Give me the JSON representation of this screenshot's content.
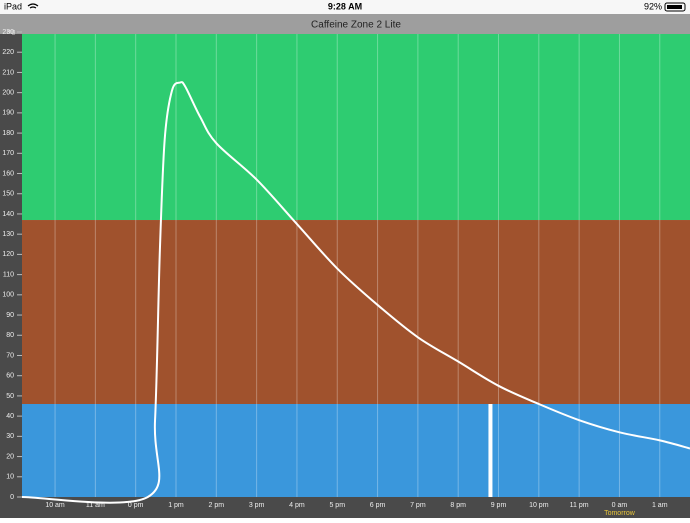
{
  "status_bar": {
    "device": "iPad",
    "time": "9:28 AM",
    "battery": "92%"
  },
  "chart_data": {
    "type": "line",
    "title": "Caffeine Zone 2 Lite",
    "y_label": "mg",
    "xlim": [
      9.18,
      25.75
    ],
    "ylim": [
      0,
      230
    ],
    "yticks": [
      0,
      10,
      20,
      30,
      40,
      50,
      60,
      70,
      80,
      90,
      100,
      110,
      120,
      130,
      140,
      150,
      160,
      170,
      180,
      190,
      200,
      210,
      220,
      230
    ],
    "xticks": [
      {
        "value": 10,
        "label": "10 am"
      },
      {
        "value": 11,
        "label": "11 am"
      },
      {
        "value": 12,
        "label": "0 pm"
      },
      {
        "value": 13,
        "label": "1 pm"
      },
      {
        "value": 14,
        "label": "2 pm"
      },
      {
        "value": 15,
        "label": "3 pm"
      },
      {
        "value": 16,
        "label": "4 pm"
      },
      {
        "value": 17,
        "label": "5 pm"
      },
      {
        "value": 18,
        "label": "6 pm"
      },
      {
        "value": 19,
        "label": "7 pm"
      },
      {
        "value": 20,
        "label": "8 pm"
      },
      {
        "value": 21,
        "label": "9 pm"
      },
      {
        "value": 22,
        "label": "10 pm"
      },
      {
        "value": 23,
        "label": "11 pm"
      },
      {
        "value": 24,
        "label": "0 am"
      },
      {
        "value": 25,
        "label": "1 am"
      }
    ],
    "annotations": [
      {
        "x": 24,
        "text": "Tomorrow",
        "color": "#e8c53a"
      }
    ],
    "zones": [
      {
        "from": 137,
        "to": 230,
        "color": "#2ecc71"
      },
      {
        "from": 46,
        "to": 137,
        "color": "#a0522d"
      },
      {
        "from": 0,
        "to": 46,
        "color": "#3a97dc"
      }
    ],
    "now_marker": 20.8,
    "grid": true,
    "x": [
      9.18,
      12.3,
      12.48,
      12.6,
      12.72,
      12.9,
      13.1,
      13.23,
      13.6,
      14,
      15,
      16,
      17,
      18,
      19,
      20,
      21,
      22,
      23,
      24,
      25,
      25.75
    ],
    "series": [
      {
        "color": "#ffffff",
        "values": [
          0,
          0,
          38,
          122,
          177,
          201,
          205,
          203,
          188,
          175,
          157,
          135,
          113,
          95,
          79,
          67,
          55,
          46,
          38,
          32,
          28,
          24
        ]
      }
    ]
  }
}
